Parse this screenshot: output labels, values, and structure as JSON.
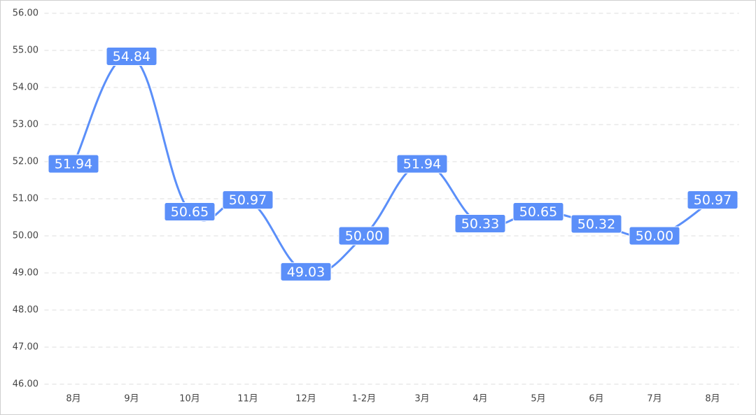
{
  "chart_data": {
    "type": "line",
    "categories": [
      "8月",
      "9月",
      "10月",
      "11月",
      "12月",
      "1-2月",
      "3月",
      "4月",
      "5月",
      "6月",
      "7月",
      "8月"
    ],
    "values": [
      51.94,
      54.84,
      50.65,
      50.97,
      49.03,
      50.0,
      51.94,
      50.33,
      50.65,
      50.32,
      50.0,
      50.97
    ],
    "value_labels": [
      "51.94",
      "54.84",
      "50.65",
      "50.97",
      "49.03",
      "50.00",
      "51.94",
      "50.33",
      "50.65",
      "50.32",
      "50.00",
      "50.97"
    ],
    "color": "#5b8ff9",
    "ylim": [
      46,
      56
    ],
    "yticks": [
      {
        "value": 46,
        "label": "46.00"
      },
      {
        "value": 47,
        "label": "47.00"
      },
      {
        "value": 48,
        "label": "48.00"
      },
      {
        "value": 49,
        "label": "49.00"
      },
      {
        "value": 50,
        "label": "50.00"
      },
      {
        "value": 51,
        "label": "51.00"
      },
      {
        "value": 52,
        "label": "52.00"
      },
      {
        "value": 53,
        "label": "53.00"
      },
      {
        "value": 54,
        "label": "54.00"
      },
      {
        "value": 55,
        "label": "55.00"
      },
      {
        "value": 56,
        "label": "56.00"
      }
    ],
    "grid": true
  }
}
